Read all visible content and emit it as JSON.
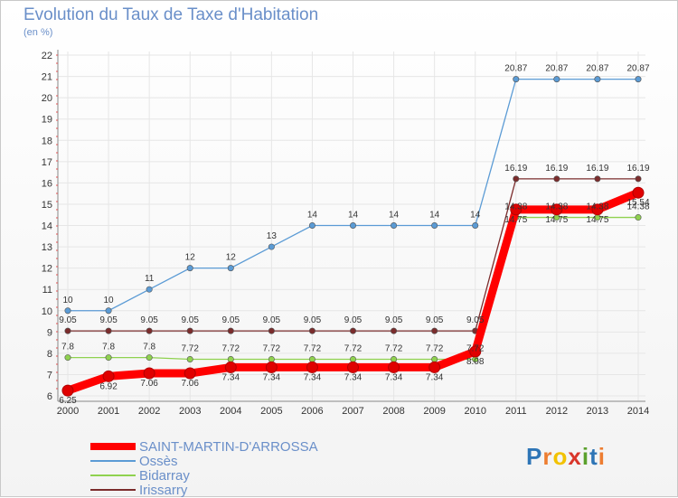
{
  "header": {
    "title": "Evolution du Taux de Taxe d'Habitation",
    "unit": "(en %)"
  },
  "logo": {
    "text": "Proxiti"
  },
  "chart_data": {
    "type": "line",
    "title": "Evolution du Taux de Taxe d'Habitation",
    "ylabel": "(en %)",
    "x": [
      "2000",
      "2001",
      "2002",
      "2003",
      "2004",
      "2005",
      "2006",
      "2007",
      "2008",
      "2009",
      "2010",
      "2011",
      "2012",
      "2013",
      "2014"
    ],
    "ylim": [
      6,
      22
    ],
    "yticks": [
      6,
      7,
      8,
      9,
      10,
      11,
      12,
      13,
      14,
      15,
      16,
      17,
      18,
      19,
      20,
      21,
      22
    ],
    "grid": true,
    "legend_position": "bottom-left",
    "series": [
      {
        "name": "SAINT-MARTIN-D'ARROSSA",
        "color": "#ff0000",
        "values": [
          6.25,
          6.92,
          7.06,
          7.06,
          7.34,
          7.34,
          7.34,
          7.34,
          7.34,
          7.34,
          8.08,
          14.75,
          14.75,
          14.75,
          15.54
        ],
        "labels": [
          "6.25",
          "6.92",
          "7.06",
          "7.06",
          "7.34",
          "7.34",
          "7.34",
          "7.34",
          "7.34",
          "7.34",
          "8.08",
          "14.75",
          "14.75",
          "14.75",
          "15.54"
        ]
      },
      {
        "name": "Ossès",
        "color": "#5b9bd5",
        "values": [
          10,
          10,
          11,
          12,
          12,
          13,
          14,
          14,
          14,
          14,
          14,
          20.87,
          20.87,
          20.87,
          20.87
        ],
        "labels": [
          "10",
          "10",
          "11",
          "12",
          "12",
          "13",
          "14",
          "14",
          "14",
          "14",
          "14",
          "20.87",
          "20.87",
          "20.87",
          "20.87"
        ]
      },
      {
        "name": "Bidarray",
        "color": "#8fd14f",
        "values": [
          7.8,
          7.8,
          7.8,
          7.72,
          7.72,
          7.72,
          7.72,
          7.72,
          7.72,
          7.72,
          7.72,
          14.38,
          14.38,
          14.38,
          14.38
        ],
        "labels": [
          "7.8",
          "7.8",
          "7.8",
          "7.72",
          "7.72",
          "7.72",
          "7.72",
          "7.72",
          "7.72",
          "7.72",
          "7.72",
          "14.38",
          "14.38",
          "14.38",
          "14.38"
        ]
      },
      {
        "name": "Irissarry",
        "color": "#7b2c2c",
        "values": [
          9.05,
          9.05,
          9.05,
          9.05,
          9.05,
          9.05,
          9.05,
          9.05,
          9.05,
          9.05,
          9.05,
          16.19,
          16.19,
          16.19,
          16.19
        ],
        "labels": [
          "9.05",
          "9.05",
          "9.05",
          "9.05",
          "9.05",
          "9.05",
          "9.05",
          "9.05",
          "9.05",
          "9.05",
          "9.05",
          "16.19",
          "16.19",
          "16.19",
          "16.19"
        ]
      }
    ]
  }
}
